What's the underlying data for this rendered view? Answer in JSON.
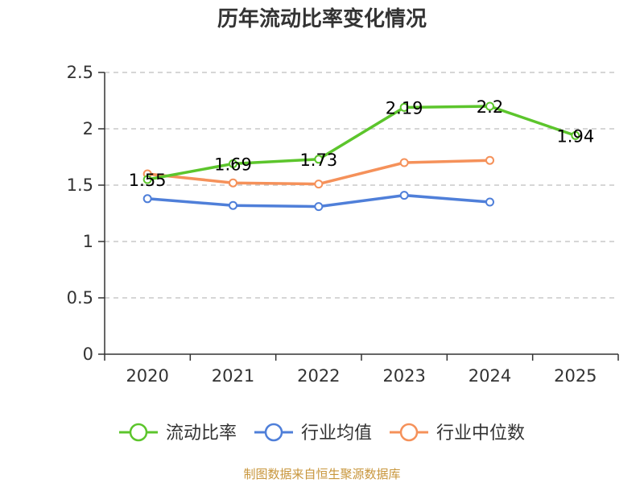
{
  "chart_data": {
    "type": "line",
    "title": "历年流动比率变化情况",
    "categories": [
      "2020",
      "2021",
      "2022",
      "2023",
      "2024",
      "2025"
    ],
    "ylim": [
      0,
      2.5
    ],
    "yticks": [
      "0",
      "0.5",
      "1",
      "1.5",
      "2",
      "2.5"
    ],
    "ytick_values": [
      0,
      0.5,
      1,
      1.5,
      2,
      2.5
    ],
    "grid": true,
    "legend_position": "bottom",
    "series": [
      {
        "name": "流动比率",
        "color": "#5cc52c",
        "values": [
          1.55,
          1.69,
          1.73,
          2.19,
          2.2,
          1.94
        ],
        "labels": [
          "1.55",
          "1.69",
          "1.73",
          "2.19",
          "2.2",
          "1.94"
        ]
      },
      {
        "name": "行业均值",
        "color": "#4f7fd9",
        "values": [
          1.38,
          1.32,
          1.31,
          1.41,
          1.35,
          null
        ]
      },
      {
        "name": "行业中位数",
        "color": "#f5915a",
        "values": [
          1.6,
          1.52,
          1.51,
          1.7,
          1.72,
          null
        ]
      }
    ],
    "source": "制图数据来自恒生聚源数据库"
  }
}
